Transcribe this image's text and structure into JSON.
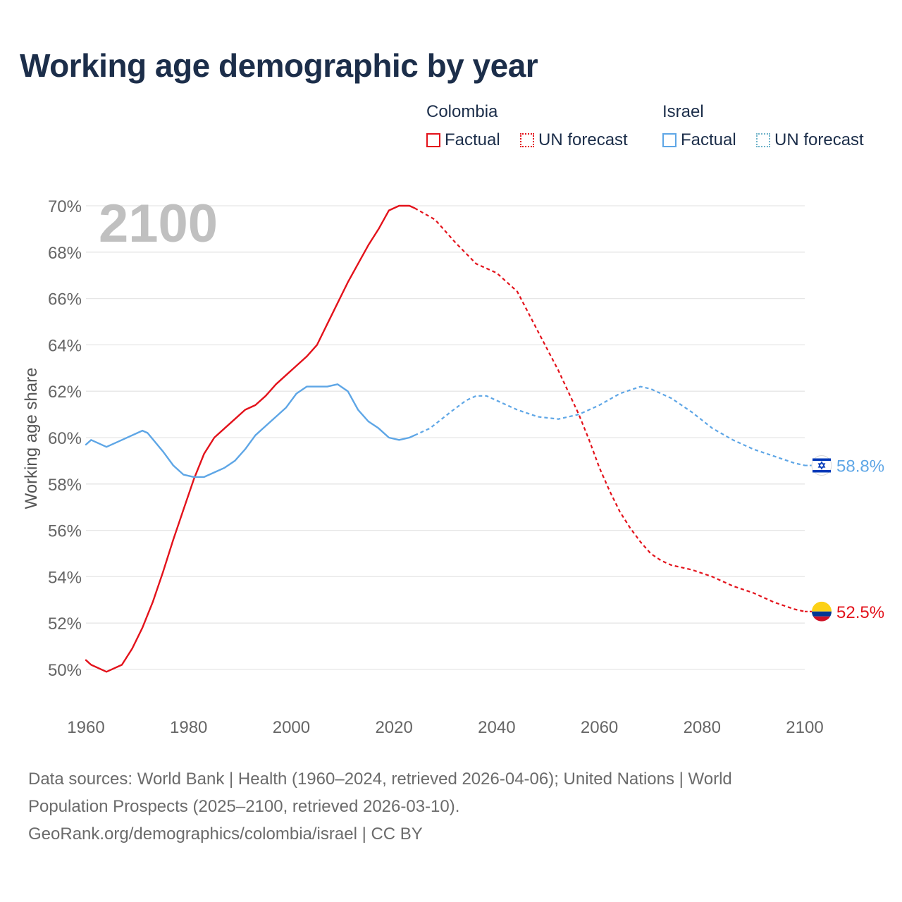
{
  "title": "Working age demographic by year",
  "legend": {
    "groups": [
      {
        "name": "Colombia",
        "factual": "Factual",
        "forecast": "UN forecast",
        "color": "#e3121b"
      },
      {
        "name": "Israel",
        "factual": "Factual",
        "forecast": "UN forecast",
        "color": "#5ea6e6"
      }
    ]
  },
  "year_watermark": "2100",
  "source": {
    "line1": "Data sources: World Bank | Health (1960–2024, retrieved 2026-04-06); United Nations | World",
    "line2": "Population Prospects (2025–2100, retrieved 2026-03-10).",
    "line3": "GeoRank.org/demographics/colombia/israel | CC BY"
  },
  "chart_data": {
    "type": "line",
    "title": "Working age demographic by year",
    "xlabel": "",
    "ylabel": "Working age share",
    "xlim": [
      1960,
      2100
    ],
    "ylim": [
      49,
      71
    ],
    "x_ticks": [
      1960,
      1980,
      2000,
      2020,
      2040,
      2060,
      2080,
      2100
    ],
    "x_tick_labels": [
      "1960",
      "1980",
      "2000",
      "2020",
      "2040",
      "2060",
      "2080",
      "2100"
    ],
    "y_ticks": [
      50,
      52,
      54,
      56,
      58,
      60,
      62,
      64,
      66,
      68,
      70
    ],
    "y_tick_labels": [
      "50%",
      "52%",
      "54%",
      "56%",
      "58%",
      "60%",
      "62%",
      "64%",
      "66%",
      "68%",
      "70%"
    ],
    "grid": true,
    "series": [
      {
        "name": "Colombia",
        "color": "#e3121b",
        "factual": {
          "x": [
            1960,
            1961,
            1964,
            1967,
            1969,
            1971,
            1973,
            1975,
            1977,
            1979,
            1981,
            1983,
            1985,
            1987,
            1989,
            1991,
            1993,
            1995,
            1997,
            1999,
            2001,
            2003,
            2005,
            2007,
            2009,
            2011,
            2013,
            2015,
            2017,
            2019,
            2021,
            2023,
            2024
          ],
          "y": [
            50.4,
            50.2,
            49.9,
            50.2,
            50.9,
            51.8,
            52.9,
            54.2,
            55.6,
            56.9,
            58.2,
            59.3,
            60.0,
            60.4,
            60.8,
            61.2,
            61.4,
            61.8,
            62.3,
            62.7,
            63.1,
            63.5,
            64.0,
            64.9,
            65.8,
            66.7,
            67.5,
            68.3,
            69.0,
            69.8,
            70.0,
            70.0,
            69.9
          ]
        },
        "forecast": {
          "x": [
            2024,
            2028,
            2032,
            2036,
            2040,
            2044,
            2048,
            2052,
            2056,
            2058,
            2060,
            2062,
            2064,
            2066,
            2068,
            2070,
            2072,
            2074,
            2078,
            2082,
            2086,
            2090,
            2094,
            2098,
            2100
          ],
          "y": [
            69.9,
            69.4,
            68.4,
            67.5,
            67.1,
            66.3,
            64.6,
            62.9,
            61.0,
            59.9,
            58.7,
            57.7,
            56.8,
            56.1,
            55.5,
            55.0,
            54.7,
            54.5,
            54.3,
            54.0,
            53.6,
            53.3,
            52.9,
            52.6,
            52.5
          ]
        },
        "end_label": "52.5%"
      },
      {
        "name": "Israel",
        "color": "#5ea6e6",
        "factual": {
          "x": [
            1960,
            1961,
            1964,
            1967,
            1971,
            1972,
            1975,
            1977,
            1979,
            1981,
            1983,
            1985,
            1987,
            1989,
            1991,
            1993,
            1995,
            1997,
            1999,
            2001,
            2003,
            2005,
            2007,
            2009,
            2011,
            2013,
            2015,
            2017,
            2019,
            2021,
            2023,
            2024
          ],
          "y": [
            59.7,
            59.9,
            59.6,
            59.9,
            60.3,
            60.2,
            59.4,
            58.8,
            58.4,
            58.3,
            58.3,
            58.5,
            58.7,
            59.0,
            59.5,
            60.1,
            60.5,
            60.9,
            61.3,
            61.9,
            62.2,
            62.2,
            62.2,
            62.3,
            62.0,
            61.2,
            60.7,
            60.4,
            60.0,
            59.9,
            60.0,
            60.1
          ]
        },
        "forecast": {
          "x": [
            2024,
            2027,
            2031,
            2034,
            2036,
            2038,
            2040,
            2044,
            2048,
            2052,
            2056,
            2060,
            2064,
            2068,
            2070,
            2072,
            2074,
            2078,
            2082,
            2086,
            2090,
            2094,
            2098,
            2100
          ],
          "y": [
            60.1,
            60.4,
            61.1,
            61.6,
            61.8,
            61.8,
            61.6,
            61.2,
            60.9,
            60.8,
            61.0,
            61.4,
            61.9,
            62.2,
            62.1,
            61.9,
            61.7,
            61.1,
            60.4,
            59.9,
            59.5,
            59.2,
            58.9,
            58.8
          ]
        },
        "end_label": "58.8%"
      }
    ]
  }
}
